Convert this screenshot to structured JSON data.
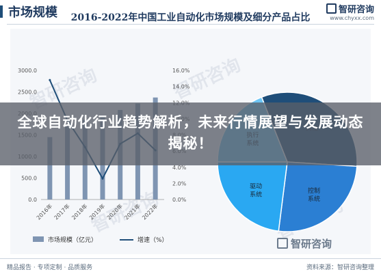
{
  "header": {
    "title": "市场规模",
    "brand_name": "智研咨询",
    "brand_url": "www.chyxx.com"
  },
  "overlay": {
    "headline": "全球自动化行业趋势解析，未来行情展望与发展动态揭秘！"
  },
  "watermark_text": "智研咨询",
  "footer": {
    "left": "精品报告 · 专项定制 · 品质服务",
    "source": "资料来源：智研咨询整理"
  },
  "colors": {
    "bar": "#7f95b2",
    "line": "#1f4e79",
    "pie_dark": "#1f4e79",
    "pie_mid": "#2b7fd3",
    "pie_bright": "#2aa8f2",
    "pie_light": "#6ec6f5"
  },
  "chart_data": [
    {
      "type": "bar",
      "title": "2016-2022年中国工业自动化市场规模及细分产品占比",
      "categories": [
        "2016年",
        "2017年",
        "2018年",
        "2019年",
        "2020年",
        "2021年",
        "2022年"
      ],
      "series": [
        {
          "name": "市场规模（亿元）",
          "kind": "bar",
          "axis": "left",
          "values": [
            1450,
            1700,
            1850,
            1950,
            2080,
            2230,
            2370
          ]
        },
        {
          "name": "增速（%）",
          "kind": "line",
          "axis": "right",
          "values": [
            14.8,
            9.8,
            6.5,
            2.6,
            6.9,
            8.2,
            6.1
          ]
        }
      ],
      "yticks_left": [
        "0.0",
        "500.0",
        "1000.0",
        "1500.0",
        "2000.0",
        "2500.0",
        "3000.0"
      ],
      "yticks_right": [
        "0.0%",
        "2.0%",
        "4.0%",
        "6.0%",
        "8.0%",
        "10.0%",
        "12.0%",
        "14.0%",
        "16.0%"
      ],
      "ylim_left": [
        0,
        3000
      ],
      "ylim_right": [
        0,
        16
      ],
      "legend": "bottom"
    },
    {
      "type": "pie",
      "labels": [
        "其他",
        "控制系统",
        "驱动系统",
        "执行系统"
      ],
      "values": [
        32,
        26,
        23,
        19
      ]
    }
  ]
}
